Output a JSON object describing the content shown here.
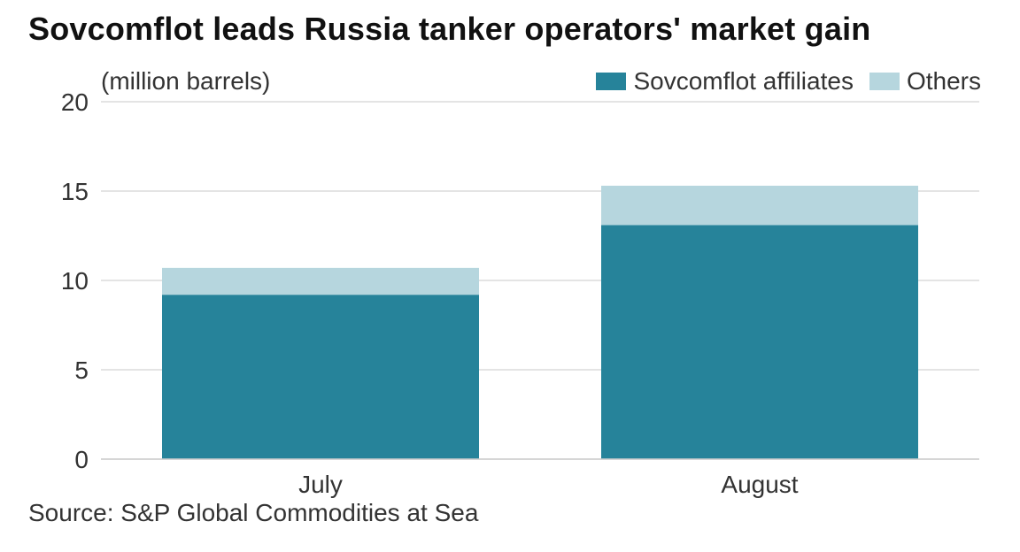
{
  "chart_data": {
    "type": "bar",
    "stacked": true,
    "title": "Sovcomflot leads Russia tanker operators' market gain",
    "ylabel": "(million barrels)",
    "source": "Source: S&P Global Commodities at Sea",
    "categories": [
      "July",
      "August"
    ],
    "series": [
      {
        "name": "Sovcomflot affiliates",
        "color": "#26839a",
        "values": [
          9.2,
          13.1
        ]
      },
      {
        "name": "Others",
        "color": "#b6d6de",
        "values": [
          1.5,
          2.2
        ]
      }
    ],
    "ylim": [
      0,
      20
    ],
    "yticks": [
      0,
      5,
      10,
      15,
      20
    ],
    "grid": true,
    "legend_position": "top-right"
  }
}
